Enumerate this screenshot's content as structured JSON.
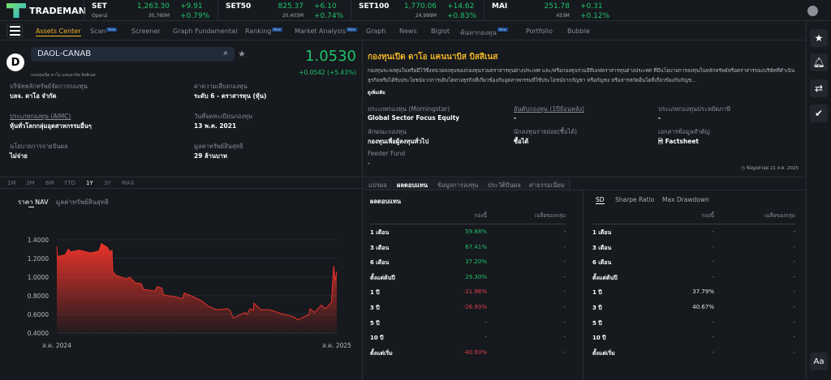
{
  "brand": "TRADEMAN",
  "tickers": [
    {
      "name": "SET",
      "sub": "Open2",
      "price": "1,263.30",
      "vol": "30,760M",
      "chg": "+9.91",
      "pct": "+0.79%"
    },
    {
      "name": "SET50",
      "sub": "",
      "price": "825.37",
      "vol": "20,403M",
      "chg": "+6.10",
      "pct": "+0.74%"
    },
    {
      "name": "SET100",
      "sub": "",
      "price": "1,770.06",
      "vol": "24,999M",
      "chg": "+14.62",
      "pct": "+0.83%"
    },
    {
      "name": "MAI",
      "sub": "",
      "price": "251.78",
      "vol": "453M",
      "chg": "+0.31",
      "pct": "+0.12%"
    }
  ],
  "nav": [
    {
      "label": "Assets Center",
      "active": true
    },
    {
      "label": "Scan",
      "new": "New"
    },
    {
      "label": "Screener"
    },
    {
      "label": "Graph Fundamental"
    },
    {
      "label": "Ranking",
      "new": "New"
    },
    {
      "label": "Market Analysis",
      "new": "New"
    },
    {
      "label": "Graph"
    },
    {
      "label": "News"
    },
    {
      "label": "Biglot"
    },
    {
      "label": "ค้นหากองทุน",
      "new": "New"
    },
    {
      "label": "Portfolio"
    },
    {
      "label": "Bubble"
    }
  ],
  "fund": {
    "logo_letter": "D",
    "symbol": "DAOL-CANAB",
    "subname": "กองทุนเปิด ดาโอ แคนนาบิส บิสสิเนส",
    "nav": "1.0530",
    "change": "+0.0542 (+5.43%)",
    "fields": [
      {
        "label": "บริษัทหลักทรัพย์จัดการกองทุน",
        "value": "บลจ. ดาโอ จำกัด"
      },
      {
        "label": "ค่าความเสี่ยงกองทุน",
        "value": "ระดับ 6 - ตราสารทุน (หุ้น)"
      },
      {
        "label": "ประเภทกองทุน (AIMC)",
        "value": "หุ้นทั่วโลกกลุ่มอุตสาหกรรมอื่นๆ"
      },
      {
        "label": "วันที่จดทะเบียนกองทุน",
        "value": "13 พ.ค. 2021"
      },
      {
        "label": "นโยบายการจ่ายปันผล",
        "value": "ไม่จ่าย"
      },
      {
        "label": "มูลค่าทรัพย์สินสุทธิ",
        "value": "29 ล้านบาท"
      }
    ],
    "title": "กองทุนเปิด ดาโอ แคนนาบิส บิสสิเนส",
    "description": "กองทุนจะลงทุนในหรือมีไว้ซึ่งหน่วยลงทุนของกองทุนรวมตราสารทุนต่างประเทศ และ/หรือกองทุนรวมอีทีเอฟตราสารทุนต่างประเทศ ที่มีนโยบายการลงทุนในหลักทรัพย์หรือตราสารของบริษัทที่ดำเนินธุรกิจหรือได้รับประโยชน์จากการเติบโตทางธุรกิจที่เกี่ยวข้องกับอุตสาหกรรมที่ใช้ประโยชน์จากกัญชา หรือกัญชง หรือสารสกัดอื่นใดที่เกี่ยวข้องกับกัญช...",
    "more": "ดูเพิ่มเติม",
    "info": [
      {
        "label": "ประเภทกองทุน (Morningstar)",
        "value": "Global Sector Focus Equity"
      },
      {
        "label": "อันดับกองทุน (1ปีย้อนหลัง)",
        "value": "-"
      },
      {
        "label": "ประเภทกองทุนประหยัดภาษี",
        "value": "-"
      },
      {
        "label": "ลักษณะกองทุน",
        "value": "กองทุนเพื่อผู้ลงทุนทั่วไป"
      },
      {
        "label": "นักลงทุนรายย่อย(ซื้อได้)",
        "value": "ซื้อได้"
      },
      {
        "label": "เอกสารข้อมูลสำคัญ",
        "value": "Factsheet"
      },
      {
        "label": "Feeder Fund",
        "value": "-"
      }
    ],
    "updated": "ข้อมูลล่าสุด 21 ส.ค. 2025"
  },
  "ranges": [
    "1M",
    "3M",
    "6M",
    "YTD",
    "1Y",
    "3Y",
    "MAX"
  ],
  "active_range": "1Y",
  "chart_tabs": [
    "ราคา NAV",
    "มูลค่าทรัพย์สินสุทธิ"
  ],
  "chart_data": {
    "type": "area",
    "color": "#e8332a",
    "ylim": [
      0.4,
      1.4
    ],
    "grid": true,
    "yticks": [
      "1.4000",
      "1.2000",
      "1.0000",
      "0.8000",
      "0.6000",
      "0.4000"
    ],
    "xticks": [
      "ส.ค. 2024",
      "ส.ค. 2025"
    ],
    "x": [
      "2024-08-21",
      "2024-08-22",
      "2024-09-01",
      "2024-09-05",
      "2024-09-08",
      "2024-09-19",
      "2024-10-04",
      "2024-10-15",
      "2024-10-18",
      "2024-10-26",
      "2024-10-29",
      "2024-11-01",
      "2024-11-02",
      "2024-11-06",
      "2024-11-20",
      "2024-11-24",
      "2024-12-01",
      "2024-12-09",
      "2024-12-12",
      "2024-12-27",
      "2024-12-30",
      "2025-01-05",
      "2025-01-07",
      "2025-01-21",
      "2025-02-01",
      "2025-02-03",
      "2025-02-12",
      "2025-02-27",
      "2025-03-06",
      "2025-03-17",
      "2025-04-01",
      "2025-04-04",
      "2025-04-08",
      "2025-04-23",
      "2025-04-26",
      "2025-04-30",
      "2025-05-04",
      "2025-05-05",
      "2025-05-14",
      "2025-05-25",
      "2025-06-09",
      "2025-06-27",
      "2025-07-01",
      "2025-07-16",
      "2025-07-17",
      "2025-07-23",
      "2025-08-01",
      "2025-08-06",
      "2025-08-14",
      "2025-08-17",
      "2025-08-19",
      "2025-08-21"
    ],
    "y": [
      1.33,
      1.22,
      1.24,
      1.3,
      1.27,
      1.29,
      1.26,
      1.28,
      1.36,
      1.32,
      1.27,
      1.29,
      1.06,
      1.02,
      0.98,
      1.0,
      0.94,
      0.93,
      0.87,
      0.85,
      0.9,
      0.88,
      0.81,
      0.79,
      0.77,
      0.83,
      0.8,
      0.74,
      0.69,
      0.65,
      0.66,
      0.64,
      0.56,
      0.62,
      0.6,
      0.66,
      0.64,
      0.72,
      0.65,
      0.65,
      0.61,
      0.57,
      0.54,
      0.6,
      0.66,
      0.62,
      0.7,
      0.66,
      0.73,
      1.12,
      0.96,
      1.06
    ]
  },
  "detail_tabs": [
    "แปรผล",
    "ผลตอบแทน",
    "ข้อมูลการลงทุน",
    "ประวัติปันผล",
    "ค่าธรรมเนียม"
  ],
  "active_detail_tab": "ผลตอบแทน",
  "returns": {
    "title": "ผลตอบแทน",
    "cols": [
      "กองนี้",
      "เฉลี่ยของกลุ่ม"
    ],
    "rows": [
      [
        "1 เดือน",
        "59.88%",
        "-"
      ],
      [
        "3 เดือน",
        "67.41%",
        "-"
      ],
      [
        "6 เดือน",
        "37.20%",
        "-"
      ],
      [
        "ตั้งแต่ต้นปี",
        "29.30%",
        "-"
      ],
      [
        "1 ปี",
        "-21.96%",
        "-"
      ],
      [
        "3 ปี",
        "-26.93%",
        "-"
      ],
      [
        "5 ปี",
        "-",
        "-"
      ],
      [
        "10 ปี",
        "-",
        "-"
      ],
      [
        "ตั้งแต่เริ่ม",
        "-40.93%",
        "-"
      ]
    ]
  },
  "risk": {
    "tabs": [
      "SD",
      "Sharpe Ratio",
      "Max Drawdown"
    ],
    "cols": [
      "กองนี้",
      "เฉลี่ยของกลุ่ม"
    ],
    "rows": [
      [
        "1 เดือน",
        "-",
        "-"
      ],
      [
        "3 เดือน",
        "-",
        "-"
      ],
      [
        "6 เดือน",
        "-",
        "-"
      ],
      [
        "ตั้งแต่ต้นปี",
        "-",
        "-"
      ],
      [
        "1 ปี",
        "37.79%",
        "-"
      ],
      [
        "3 ปี",
        "40.67%",
        "-"
      ],
      [
        "5 ปี",
        "-",
        "-"
      ],
      [
        "10 ปี",
        "-",
        "-"
      ],
      [
        "ตั้งแต่เริ่ม",
        "-",
        "-"
      ]
    ]
  },
  "font_button": "Aa",
  "colors": {
    "up": "#1fc36b",
    "down": "#e0414b",
    "accent": "#f0b429"
  }
}
